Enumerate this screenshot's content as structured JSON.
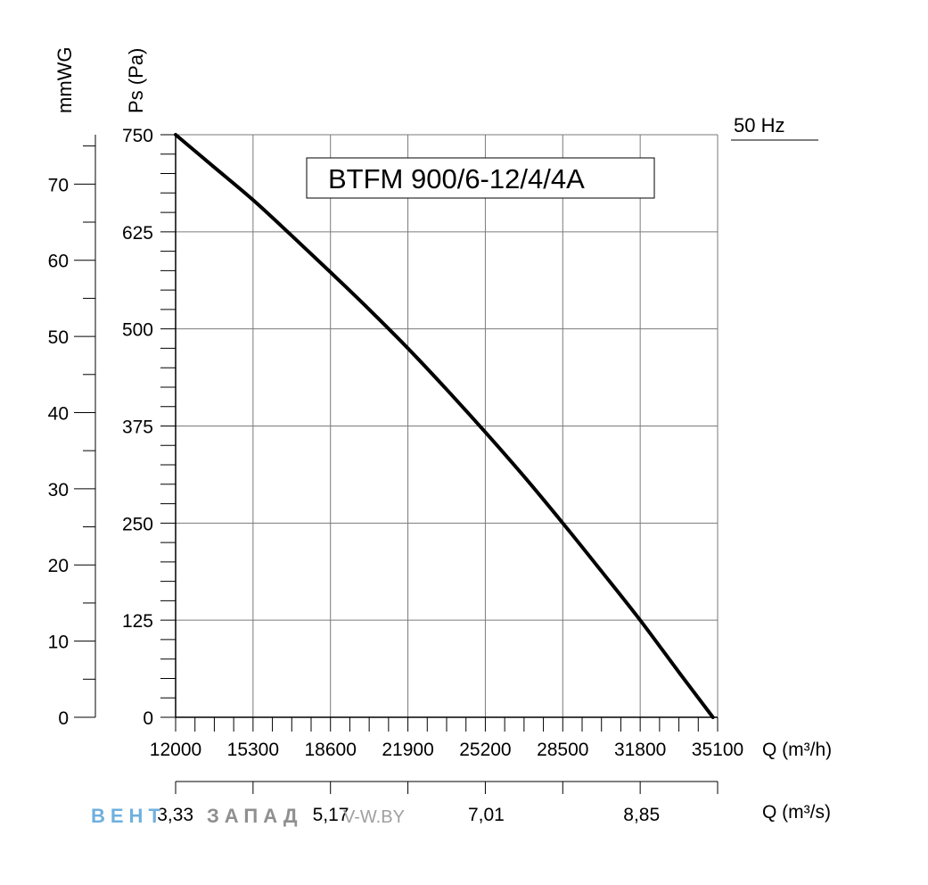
{
  "chart_data": {
    "type": "line",
    "title": "BTFM 900/6-12/4/4A",
    "frequency_label": "50 Hz",
    "xlabel": "Q (m³/h)",
    "xlabel_secondary": "Q (m³/s)",
    "ylabel": "Ps (Pa)",
    "ylabel_secondary": "mmWG",
    "xlim": [
      12000,
      35100
    ],
    "ylim": [
      0,
      750
    ],
    "x_ticks": [
      "12000",
      "15300",
      "18600",
      "21900",
      "25200",
      "28500",
      "31800",
      "35100"
    ],
    "y_ticks": [
      "0",
      "125",
      "250",
      "375",
      "500",
      "625",
      "750"
    ],
    "y2_ticks": [
      "0",
      "10",
      "20",
      "30",
      "40",
      "50",
      "60",
      "70"
    ],
    "x2_ticks": [
      "3,33",
      "5,17",
      "7,01",
      "8,85"
    ],
    "grid": true,
    "series": [
      {
        "x": [
          12000,
          13650,
          15300,
          16950,
          18600,
          20250,
          21900,
          23550,
          25200,
          26850,
          28500,
          30150,
          31800,
          33450,
          34900
        ],
        "y": [
          750,
          708,
          666,
          620,
          573,
          525,
          475,
          422,
          367,
          310,
          250,
          188,
          125,
          58,
          0
        ]
      }
    ]
  },
  "watermark": {
    "brand_blue": "ВЕНТ",
    "brand_gray": "ЗАПАД",
    "domain": "V-W.BY",
    "blue_color": "#6fb0dd",
    "gray_color": "#8f8f8f"
  }
}
